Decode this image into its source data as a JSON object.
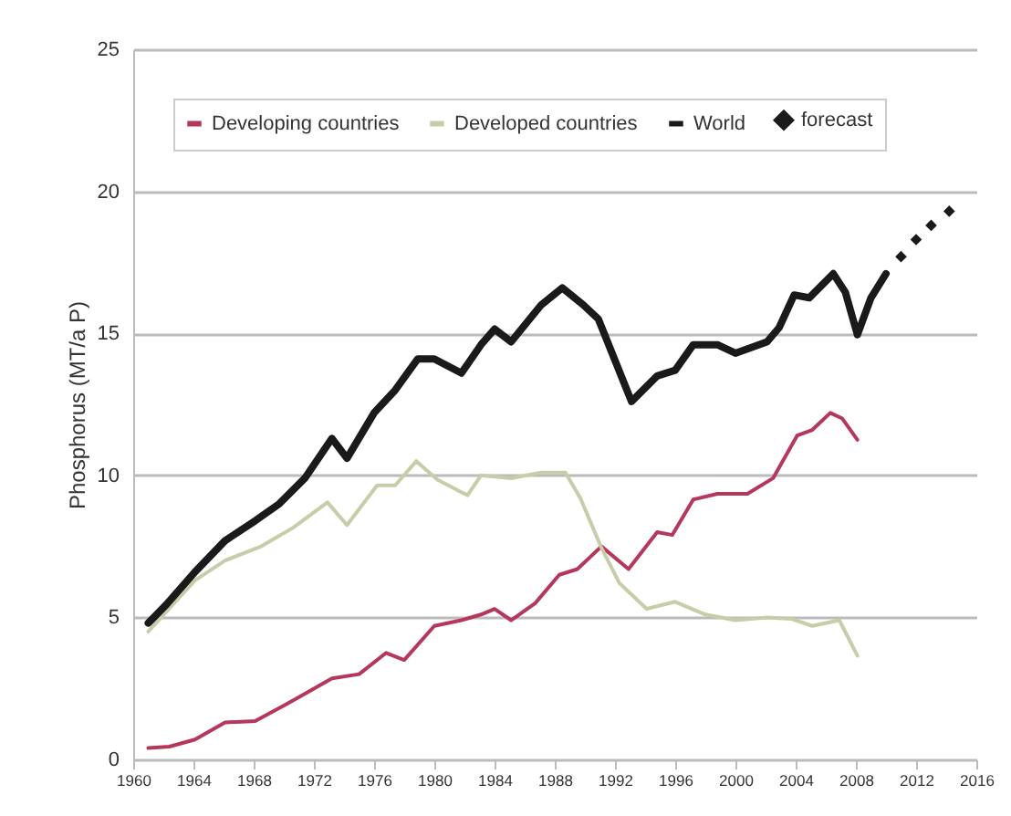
{
  "chart_data": {
    "type": "line",
    "ylabel": "Phosphorus (MT/a P)",
    "xlim": [
      1960,
      2016
    ],
    "xticks": [
      1960,
      1964,
      1968,
      1972,
      1976,
      1980,
      1984,
      1988,
      1992,
      1996,
      2000,
      2004,
      2008,
      2012,
      2016
    ],
    "ylim": [
      0,
      25
    ],
    "yticks": [
      0,
      5,
      10,
      15,
      20,
      25
    ],
    "grid": "y",
    "legend": "top",
    "line_style": "solid",
    "series": [
      {
        "name": "Developing countries",
        "color": "#b5375c",
        "x": [
          1961,
          1962.4,
          1964.1,
          1966.1,
          1968.1,
          1970.2,
          1973.2,
          1975,
          1976.8,
          1978,
          1980,
          1981.8,
          1983.1,
          1984,
          1985.1,
          1986.7,
          1988.3,
          1989.5,
          1991.1,
          1992.9,
          1994.8,
          1995.8,
          1997.2,
          1998.8,
          2000.8,
          2002.5,
          2004.1,
          2005.1,
          2006.3,
          2007.1,
          2008.1
        ],
        "values": [
          0.4,
          0.45,
          0.7,
          1.3,
          1.35,
          1.95,
          2.85,
          3.0,
          3.75,
          3.5,
          4.7,
          4.9,
          5.1,
          5.3,
          4.9,
          5.5,
          6.5,
          6.7,
          7.5,
          6.7,
          8.0,
          7.9,
          9.15,
          9.35,
          9.35,
          9.9,
          11.4,
          11.6,
          12.2,
          12.0,
          11.25
        ]
      },
      {
        "name": "Developed countries",
        "color": "#c8cca8",
        "x": [
          1961,
          1964.1,
          1966.1,
          1968.5,
          1970.6,
          1972.9,
          1974.2,
          1976.2,
          1977.4,
          1978.8,
          1980.2,
          1982.2,
          1983.1,
          1985.1,
          1987.1,
          1988.7,
          1989.7,
          1991.1,
          1992.3,
          1994.1,
          1996,
          1998,
          2000,
          2002.1,
          2003.7,
          2005.1,
          2006.9,
          2008.1
        ],
        "values": [
          4.5,
          6.3,
          7.0,
          7.5,
          8.15,
          9.05,
          8.25,
          9.65,
          9.65,
          10.5,
          9.85,
          9.3,
          10.0,
          9.9,
          10.1,
          10.1,
          9.2,
          7.45,
          6.2,
          5.3,
          5.55,
          5.1,
          4.9,
          5.0,
          4.95,
          4.7,
          4.9,
          3.65
        ]
      },
      {
        "name": "World",
        "color": "#1a1a1a",
        "x": [
          1961,
          1962.2,
          1964.1,
          1966.1,
          1968.1,
          1969.7,
          1971.4,
          1973.2,
          1974.2,
          1976,
          1977.4,
          1978.9,
          1980,
          1981.8,
          1983.1,
          1984,
          1985.1,
          1987.1,
          1988.5,
          1989.9,
          1990.9,
          1993.1,
          1994.8,
          1996,
          1997.2,
          1998.8,
          2000,
          2002.1,
          2002.9,
          2003.9,
          2004.9,
          2006.5,
          2007.3,
          2008.1,
          2009,
          2010
        ],
        "values": [
          4.8,
          5.45,
          6.6,
          7.7,
          8.4,
          9.0,
          9.9,
          11.3,
          10.6,
          12.2,
          13.0,
          14.1,
          14.1,
          13.6,
          14.6,
          15.15,
          14.7,
          16.0,
          16.6,
          16.0,
          15.5,
          12.6,
          13.5,
          13.7,
          14.6,
          14.6,
          14.3,
          14.7,
          15.2,
          16.35,
          16.25,
          17.1,
          16.45,
          14.95,
          16.25,
          17.1
        ]
      },
      {
        "name": "forecast",
        "type": "scatter",
        "marker": "diamond",
        "color": "#1a1a1a",
        "x": [
          2011,
          2012,
          2013,
          2014.2
        ],
        "values": [
          17.7,
          18.3,
          18.8,
          19.3
        ]
      }
    ]
  }
}
